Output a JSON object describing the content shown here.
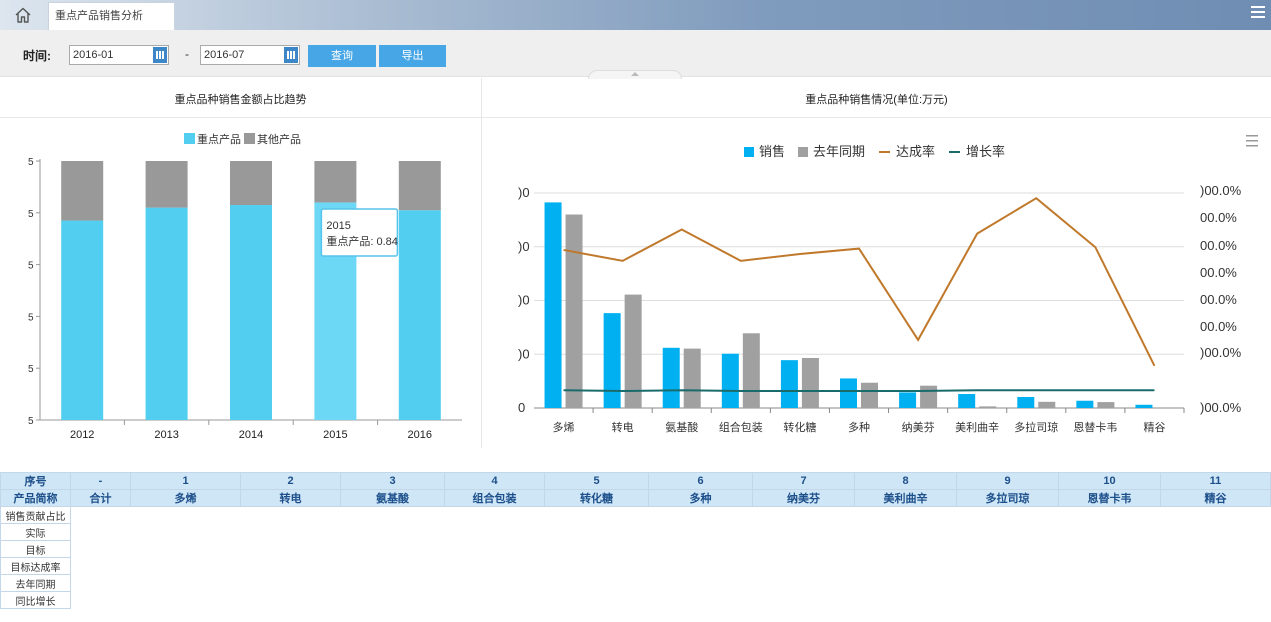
{
  "tab": {
    "title": "重点产品销售分析"
  },
  "toolbar": {
    "time_label": "时间:",
    "start_date": "2016-01",
    "separator": "-",
    "end_date": "2016-07",
    "query_label": "查询",
    "export_label": "导出"
  },
  "left_panel": {
    "title": "重点品种销售金额占比趋势"
  },
  "right_panel": {
    "title": "重点品种销售情况(单位:万元)"
  },
  "colors": {
    "key_product": "#52cff0",
    "other_product": "#999999",
    "sales": "#00b0f0",
    "last_year": "#a0a0a0",
    "achievement": "#c0782a",
    "growth": "#1a6b6b"
  },
  "chart_data": [
    {
      "type": "bar",
      "stacked": true,
      "categories": [
        "2012",
        "2013",
        "2014",
        "2015",
        "2016"
      ],
      "series": [
        {
          "name": "重点产品",
          "values": [
            0.77,
            0.82,
            0.83,
            0.84,
            0.81
          ]
        },
        {
          "name": "其他产品",
          "values": [
            0.23,
            0.18,
            0.17,
            0.16,
            0.19
          ]
        }
      ],
      "ylim": [
        0,
        1
      ],
      "y_tick_labels": [
        "5",
        "5",
        "5",
        "5",
        "5",
        "5"
      ],
      "legend_position": "top",
      "tooltip": {
        "category": "2015",
        "text": "重点产品: 0.84"
      }
    },
    {
      "type": "bar",
      "categories": [
        "多烯",
        "转电",
        "氨基酸",
        "组合包装",
        "转化糖",
        "多种",
        "纳美芬",
        "美利曲辛",
        "多拉司琼",
        "恩替卡韦",
        "精谷"
      ],
      "series": [
        {
          "name": "销售",
          "type": "bar",
          "values": [
            765,
            353,
            224,
            202,
            178,
            110,
            58,
            52,
            41,
            27,
            12
          ]
        },
        {
          "name": "去年同期",
          "type": "bar",
          "values": [
            720,
            422,
            221,
            278,
            186,
            94,
            83,
            6,
            23,
            22,
            0
          ]
        },
        {
          "name": "达成率",
          "type": "line",
          "axis": "right",
          "values": [
            1160,
            1080,
            1310,
            1080,
            1130,
            1170,
            500,
            1280,
            1540,
            1180,
            310
          ]
        },
        {
          "name": "增长率",
          "type": "line",
          "axis": "right",
          "values": [
            130,
            125,
            130,
            125,
            125,
            125,
            125,
            130,
            130,
            130,
            130
          ]
        }
      ],
      "ylim": [
        0,
        800
      ],
      "y_tick_labels": [
        "0",
        ")0",
        ")0",
        ")0",
        ")0"
      ],
      "y2_tick_labels": [
        ")00.0%",
        "00.0%",
        "00.0%",
        "00.0%",
        "00.0%",
        "00.0%",
        ")00.0%",
        ")00.0%"
      ],
      "legend_position": "top"
    }
  ],
  "table": {
    "index_label": "序号",
    "name_label": "产品简称",
    "indices": [
      "-",
      "1",
      "2",
      "3",
      "4",
      "5",
      "6",
      "7",
      "8",
      "9",
      "10",
      "11"
    ],
    "names": [
      "合计",
      "多烯",
      "转电",
      "氨基酸",
      "组合包装",
      "转化糖",
      "多种",
      "纳美芬",
      "美利曲辛",
      "多拉司琼",
      "恩替卡韦",
      "精谷"
    ],
    "row_labels": [
      "销售贡献占比",
      "实际",
      "目标",
      "目标达成率",
      "去年同期",
      "同比增长"
    ]
  }
}
